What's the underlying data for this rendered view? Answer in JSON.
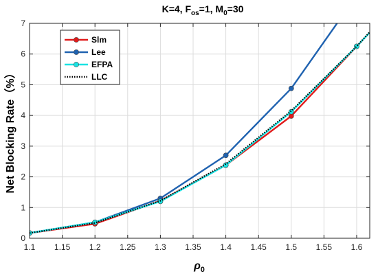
{
  "chart_data": {
    "type": "line",
    "title": "K=4, F",
    "title_sub": "os",
    "title_rest": "=1, M",
    "title_sub2": "0",
    "title_end": "=30",
    "xlabel": "ρ",
    "xlabel_sub": "0",
    "ylabel": "Net Blocking Rate（%）",
    "xlim": [
      1.1,
      1.62
    ],
    "ylim": [
      0,
      7
    ],
    "xticks": [
      "1.1",
      "1.15",
      "1.2",
      "1.25",
      "1.3",
      "1.35",
      "1.4",
      "1.45",
      "1.5",
      "1.55",
      "1.6"
    ],
    "xtick_values": [
      1.1,
      1.15,
      1.2,
      1.25,
      1.3,
      1.35,
      1.4,
      1.45,
      1.5,
      1.55,
      1.6
    ],
    "yticks": [
      "0",
      "1",
      "2",
      "3",
      "4",
      "5",
      "6",
      "7"
    ],
    "ytick_values": [
      0,
      1,
      2,
      3,
      4,
      5,
      6,
      7
    ],
    "grid": true,
    "legend_position": "top-left",
    "series": [
      {
        "name": "Slm",
        "color": "#e01b1b",
        "style": "solid",
        "marker": "circle",
        "x": [
          1.1,
          1.2,
          1.3,
          1.4,
          1.5,
          1.6,
          1.62
        ],
        "y": [
          0.17,
          0.47,
          1.22,
          2.38,
          3.98,
          6.25,
          6.7
        ]
      },
      {
        "name": "Lee",
        "color": "#1f62b0",
        "style": "solid",
        "marker": "circle",
        "x": [
          1.1,
          1.2,
          1.3,
          1.4,
          1.5,
          1.57
        ],
        "y": [
          0.17,
          0.52,
          1.3,
          2.7,
          4.88,
          7.0
        ]
      },
      {
        "name": "EFPA",
        "color": "#19e3e3",
        "style": "solid",
        "marker": "circle",
        "x": [
          1.1,
          1.2,
          1.3,
          1.4,
          1.5,
          1.6,
          1.62
        ],
        "y": [
          0.17,
          0.52,
          1.2,
          2.38,
          4.12,
          6.25,
          6.7
        ]
      },
      {
        "name": "LLC",
        "color": "#000000",
        "style": "dotted",
        "marker": "none",
        "x": [
          1.1,
          1.2,
          1.3,
          1.4,
          1.5,
          1.6,
          1.62
        ],
        "y": [
          0.17,
          0.5,
          1.22,
          2.42,
          4.15,
          6.25,
          6.72
        ]
      }
    ]
  }
}
